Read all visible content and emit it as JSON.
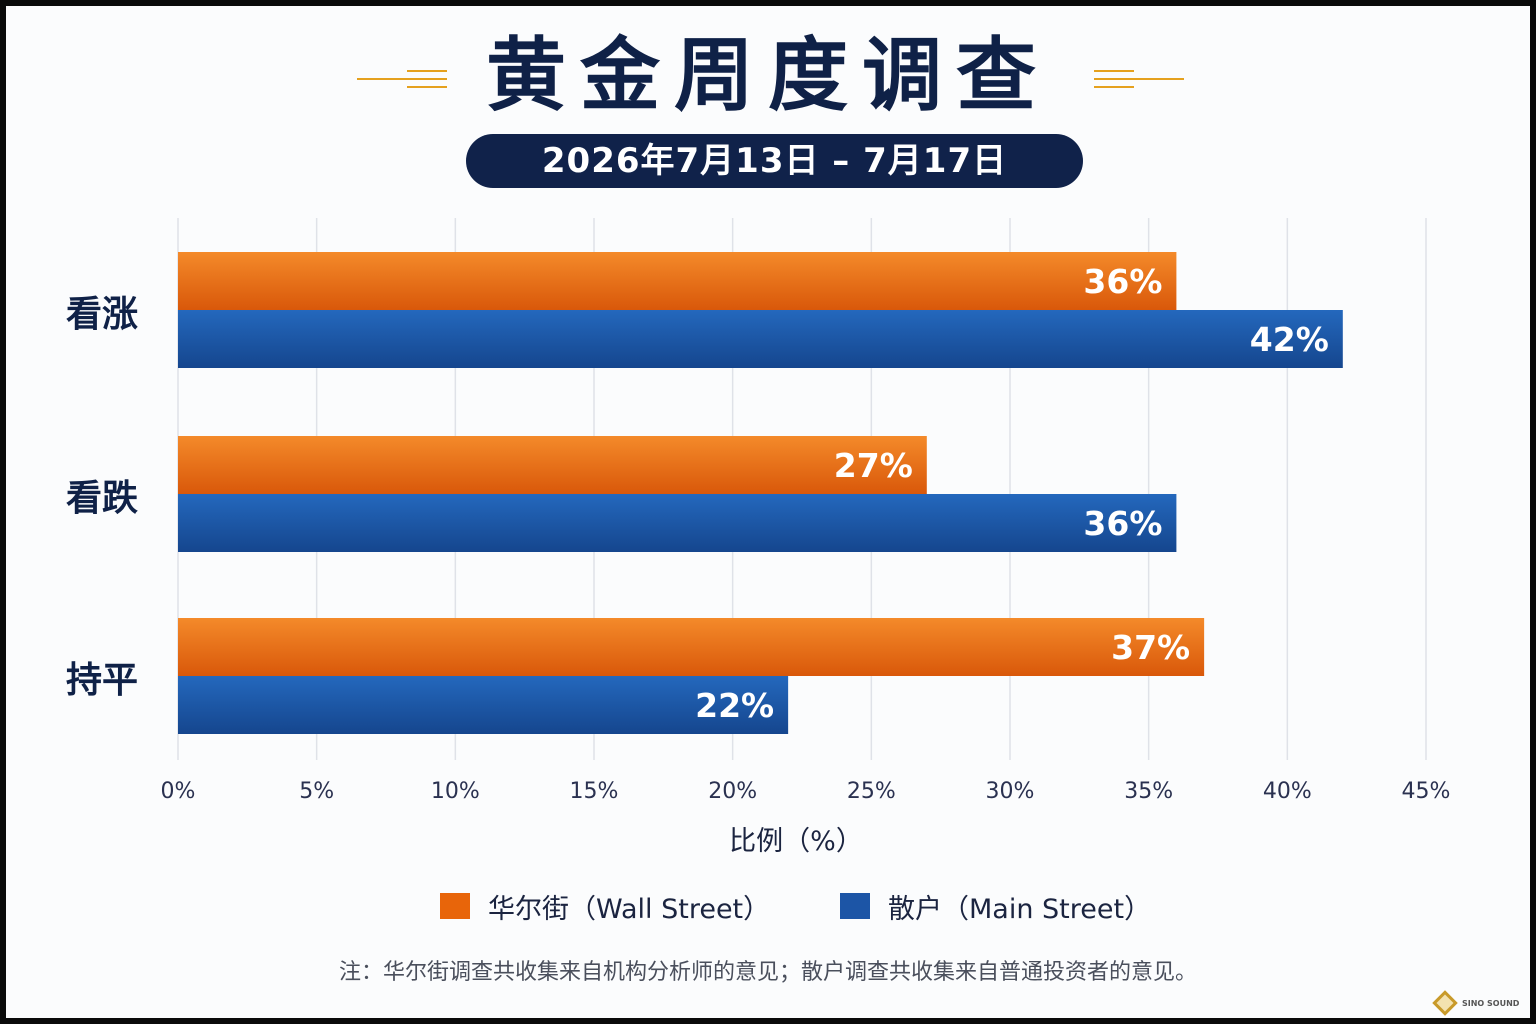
{
  "title": "黄金周度调查",
  "subtitle": "2026年7月13日 – 7月17日",
  "footnote": "注：华尔街调查共收集来自机构分析师的意见；散户调查共收集来自普通投资者的意见。",
  "logo": {
    "text": "SINO SOUND"
  },
  "colors": {
    "wall_street": "#e8650a",
    "main_street": "#1c55a6",
    "title": "#0f2147",
    "accent": "#e5a11e"
  },
  "chart_data": {
    "type": "bar",
    "orientation": "horizontal",
    "categories": [
      "看涨",
      "看跌",
      "持平"
    ],
    "series": [
      {
        "name": "华尔街（Wall Street）",
        "values": [
          36,
          27,
          37
        ],
        "labels": [
          "36%",
          "27%",
          "37%"
        ],
        "color": "#e8650a"
      },
      {
        "name": "散户（Main Street）",
        "values": [
          42,
          36,
          22
        ],
        "labels": [
          "42%",
          "36%",
          "22%"
        ],
        "color": "#1c55a6"
      }
    ],
    "xlabel": "比例（%）",
    "xlim": [
      0,
      45
    ],
    "xticks": [
      0,
      5,
      10,
      15,
      20,
      25,
      30,
      35,
      40,
      45
    ],
    "xtick_labels": [
      "0%",
      "5%",
      "10%",
      "15%",
      "20%",
      "25%",
      "30%",
      "35%",
      "40%",
      "45%"
    ],
    "grid": "vertical",
    "legend_position": "bottom-center"
  }
}
